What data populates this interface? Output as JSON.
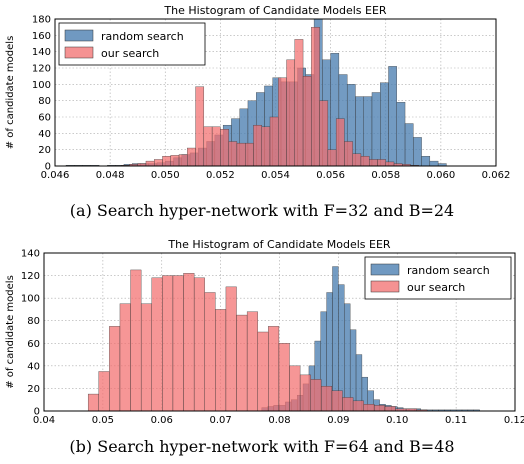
{
  "chart_data": [
    {
      "type": "histogram",
      "title": "The Histogram of Candidate Models EER",
      "ylabel": "# of candidate models",
      "xlabel": "",
      "caption": "(a)  Search hyper-network with F=32 and B=24",
      "xlim": [
        0.046,
        0.062
      ],
      "ylim": [
        0,
        180
      ],
      "xticks": [
        "0.046",
        "0.048",
        "0.050",
        "0.052",
        "0.054",
        "0.056",
        "0.058",
        "0.060",
        "0.062"
      ],
      "yticks": [
        "0",
        "20",
        "40",
        "60",
        "80",
        "100",
        "120",
        "140",
        "160",
        "180"
      ],
      "grid": true,
      "legend_position": "top-left",
      "series": [
        {
          "name": "random search",
          "color": "#4c7fb1",
          "bin_start": 0.0464,
          "bin_width": 0.0003,
          "values": [
            1,
            1,
            1,
            1,
            0,
            1,
            1,
            2,
            3,
            3,
            3,
            4,
            6,
            10,
            14,
            16,
            22,
            30,
            38,
            50,
            58,
            70,
            80,
            90,
            98,
            108,
            103,
            103,
            120,
            112,
            180,
            130,
            138,
            112,
            100,
            85,
            85,
            90,
            102,
            122,
            78,
            52,
            35,
            12,
            6,
            3
          ]
        },
        {
          "name": "our search",
          "color": "#f26d6d",
          "bin_start": 0.0466,
          "bin_width": 0.0003,
          "values": [
            0,
            0,
            0,
            0,
            0,
            0,
            1,
            2,
            3,
            6,
            8,
            12,
            13,
            14,
            22,
            97,
            48,
            48,
            45,
            30,
            28,
            28,
            50,
            48,
            60,
            108,
            130,
            155,
            110,
            170,
            80,
            20,
            58,
            30,
            15,
            12,
            8,
            8,
            5,
            3,
            2,
            1
          ]
        }
      ]
    },
    {
      "type": "histogram",
      "title": "The Histogram of Candidate Models EER",
      "ylabel": "# of candidate models",
      "xlabel": "",
      "caption": "(b)  Search hyper-network with F=64 and B=48",
      "xlim": [
        0.04,
        0.12
      ],
      "ylim": [
        0,
        140
      ],
      "xticks": [
        "0.04",
        "0.05",
        "0.06",
        "0.07",
        "0.08",
        "0.09",
        "0.10",
        "0.11",
        "0.12"
      ],
      "yticks": [
        "0",
        "20",
        "40",
        "60",
        "80",
        "100",
        "120",
        "140"
      ],
      "grid": true,
      "legend_position": "top-right",
      "series": [
        {
          "name": "random search",
          "color": "#4c7fb1",
          "bin_start": 0.077,
          "bin_width": 0.001,
          "values": [
            3,
            4,
            5,
            5,
            8,
            10,
            14,
            24,
            40,
            62,
            88,
            105,
            128,
            112,
            95,
            72,
            50,
            30,
            18,
            10,
            6,
            5,
            4,
            3,
            2,
            2,
            2,
            1,
            1,
            1,
            1,
            1,
            1,
            1,
            1,
            1,
            1
          ]
        },
        {
          "name": "our search",
          "color": "#f26d6d",
          "bin_start": 0.0475,
          "bin_width": 0.0018,
          "values": [
            15,
            35,
            75,
            95,
            125,
            95,
            118,
            120,
            120,
            122,
            118,
            105,
            90,
            110,
            85,
            88,
            70,
            75,
            60,
            40,
            32,
            28,
            22,
            18,
            12,
            9,
            6,
            5,
            4,
            2,
            2,
            1
          ]
        }
      ]
    }
  ]
}
